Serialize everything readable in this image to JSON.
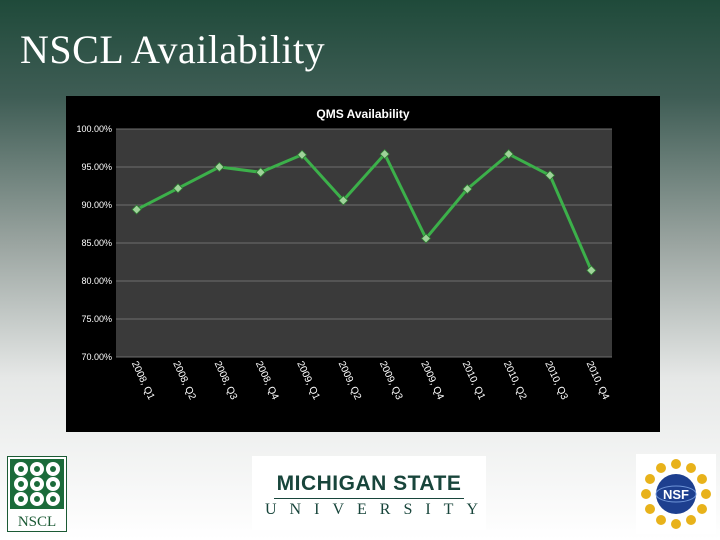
{
  "slide": {
    "title": "NSCL Availability"
  },
  "logos": {
    "nscl_text": "NSCL",
    "msu_line1": "MICHIGAN STATE",
    "msu_line2": "UNIVERSITY",
    "nsf_text": "NSF"
  },
  "colors": {
    "line": "#3cb04a",
    "marker_fill": "#9fd39a",
    "plot_bg": "#3a3a3a",
    "gridline": "#6e6e6e",
    "text": "#ffffff"
  },
  "chart_data": {
    "type": "line",
    "title": "QMS Availability",
    "xlabel": "",
    "ylabel": "",
    "categories": [
      "2008, Q1",
      "2008, Q2",
      "2008, Q3",
      "2008, Q4",
      "2009, Q1",
      "2009, Q2",
      "2009, Q3",
      "2009, Q4",
      "2010, Q1",
      "2010, Q2",
      "2010, Q3",
      "2010, Q4"
    ],
    "values": [
      89.4,
      92.2,
      95.0,
      94.3,
      96.6,
      90.6,
      96.7,
      85.6,
      92.1,
      96.7,
      93.9,
      81.4
    ],
    "ylim": [
      70,
      100
    ],
    "yticks": [
      "100.00%",
      "95.00%",
      "90.00%",
      "85.00%",
      "80.00%",
      "75.00%",
      "70.00%"
    ],
    "ytick_values": [
      100,
      95,
      90,
      85,
      80,
      75,
      70
    ],
    "grid": true,
    "legend": "none"
  }
}
